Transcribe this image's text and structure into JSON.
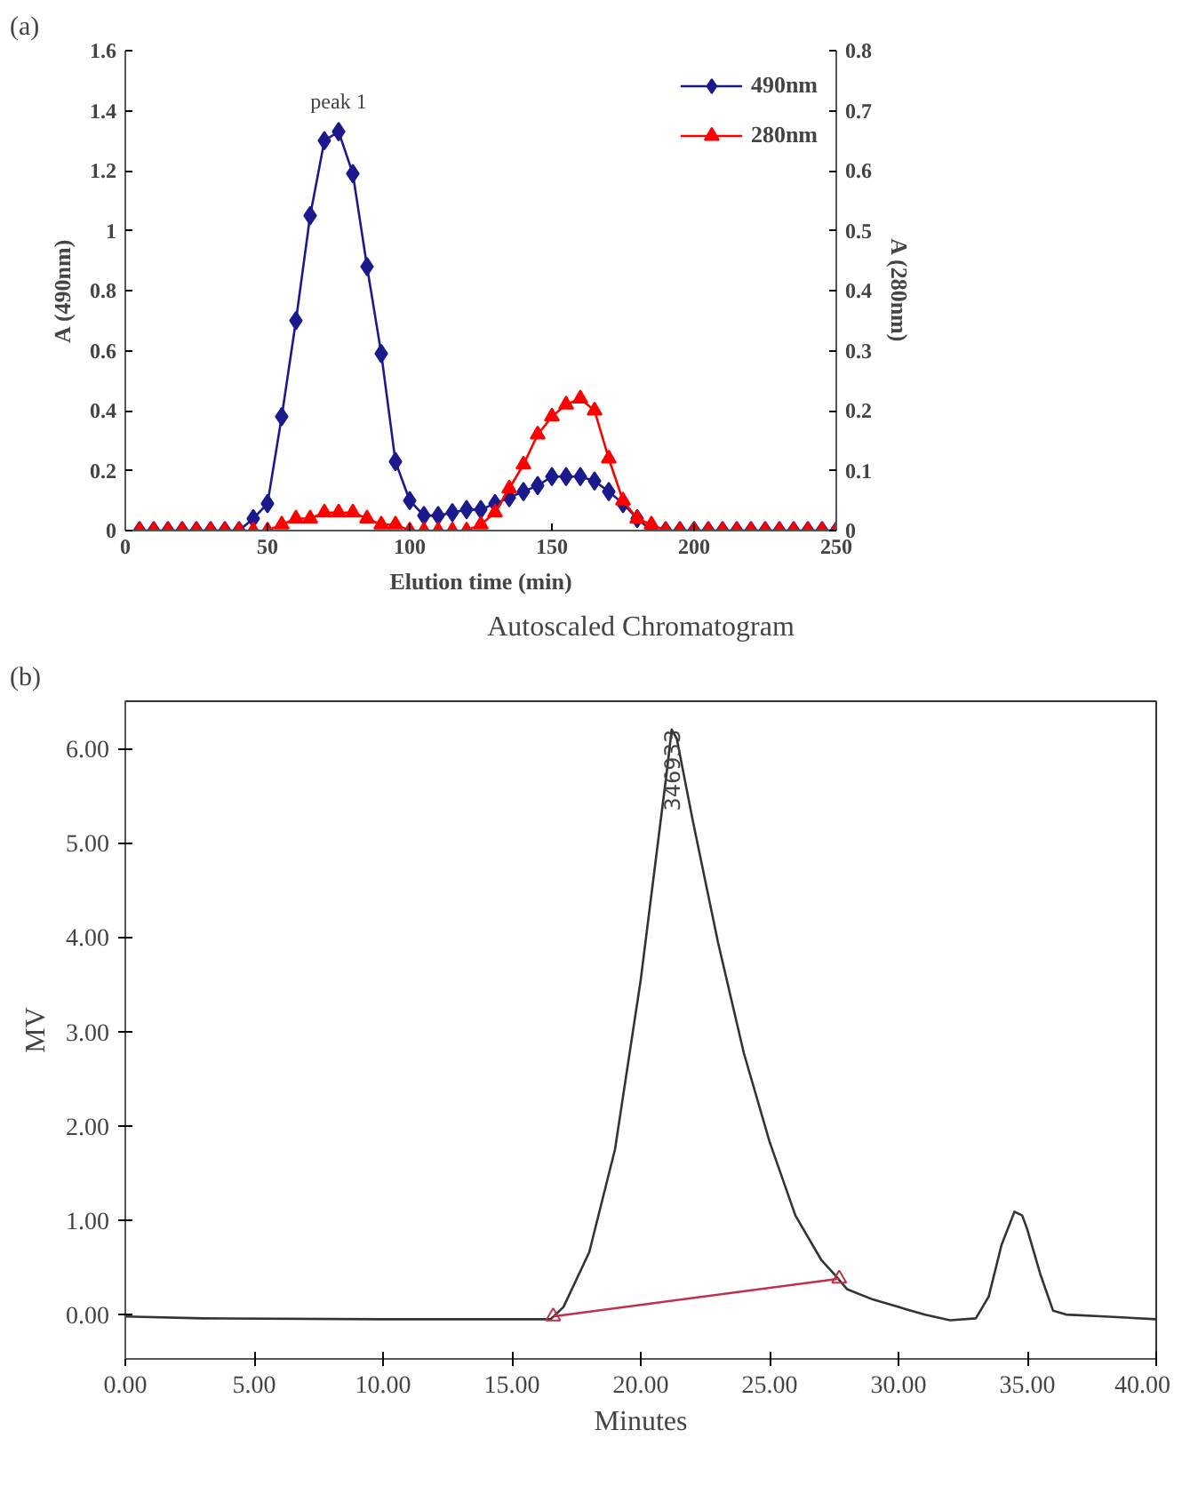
{
  "chart_data": [
    {
      "type": "line",
      "xlabel": "Elution time (min)",
      "ylabel": "A (490nm)",
      "y2label": "A (280nm)",
      "annotations": [
        "(a)",
        {
          "text": "peak 1",
          "x": 75,
          "y": 1.33
        }
      ],
      "x": [
        5,
        10,
        15,
        20,
        25,
        30,
        35,
        40,
        45,
        50,
        55,
        60,
        65,
        70,
        75,
        80,
        85,
        90,
        95,
        100,
        105,
        110,
        115,
        120,
        125,
        130,
        135,
        140,
        145,
        150,
        155,
        160,
        165,
        170,
        175,
        180,
        185,
        190,
        195,
        200,
        205,
        210,
        215,
        220,
        225,
        230,
        235,
        240,
        245,
        250
      ],
      "series": [
        {
          "name": "490nm",
          "color": "#1a1a8c",
          "marker": "diamond",
          "values": [
            0,
            0,
            0,
            0,
            0,
            0,
            0,
            0,
            0.04,
            0.09,
            0.38,
            0.7,
            1.05,
            1.3,
            1.33,
            1.19,
            0.88,
            0.59,
            0.23,
            0.1,
            0.05,
            0.05,
            0.06,
            0.07,
            0.07,
            0.09,
            0.11,
            0.13,
            0.15,
            0.18,
            0.18,
            0.18,
            0.165,
            0.13,
            0.09,
            0.04,
            0,
            0,
            0,
            0,
            0,
            0,
            0,
            0,
            0,
            0,
            0,
            0,
            0,
            0
          ]
        },
        {
          "name": "280nm",
          "color": "#ff0000",
          "marker": "triangle",
          "axis": "y2",
          "values": [
            0,
            0,
            0,
            0,
            0,
            0,
            0,
            0,
            0,
            0,
            0.01,
            0.02,
            0.02,
            0.03,
            0.03,
            0.03,
            0.02,
            0.01,
            0.01,
            0,
            0,
            0,
            0,
            0,
            0.01,
            0.03,
            0.07,
            0.11,
            0.16,
            0.19,
            0.21,
            0.22,
            0.2,
            0.12,
            0.05,
            0.02,
            0.01,
            0,
            0,
            0,
            0,
            0,
            0,
            0,
            0,
            0,
            0,
            0,
            0,
            0
          ]
        }
      ],
      "xlim": [
        0,
        250
      ],
      "xticks": [
        0,
        50,
        100,
        150,
        200,
        250
      ],
      "ylim": [
        0,
        1.6
      ],
      "yticks": [
        0,
        0.2,
        0.4,
        0.6,
        0.8,
        1,
        1.2,
        1.4,
        1.6
      ],
      "y2lim": [
        0,
        0.8
      ],
      "y2ticks": [
        0,
        0.1,
        0.2,
        0.3,
        0.4,
        0.5,
        0.6,
        0.7,
        0.8
      ],
      "grid": false,
      "legend": "top right"
    },
    {
      "type": "line",
      "title": "Autoscaled Chromatogram",
      "xlabel": "Minutes",
      "ylabel": "MV",
      "annotations": [
        "(b)",
        {
          "text": "346933",
          "x": 21.2,
          "y": 6.2
        }
      ],
      "series": [
        {
          "color": "#333333",
          "marker": "none",
          "x": [
            0,
            3,
            10,
            16.5,
            17,
            18,
            19,
            20,
            20.5,
            21,
            21.2,
            21.4,
            22,
            23,
            24,
            25,
            26,
            27,
            27.5,
            28,
            29,
            30,
            31,
            32,
            33,
            33.5,
            34,
            34.5,
            34.8,
            35,
            35.5,
            36,
            36.5,
            38,
            40
          ],
          "values": [
            -0.02,
            -0.04,
            -0.05,
            -0.05,
            0.08,
            0.66,
            1.75,
            3.55,
            4.64,
            5.73,
            6.2,
            6.1,
            5.26,
            3.94,
            2.77,
            1.83,
            1.05,
            0.58,
            0.43,
            0.27,
            0.16,
            0.08,
            0,
            -0.06,
            -0.04,
            0.19,
            0.74,
            1.09,
            1.05,
            0.9,
            0.43,
            0.04,
            0,
            -0.02,
            -0.05
          ]
        },
        {
          "color": "#c0304a",
          "marker": "triangle",
          "x": [
            16.6,
            27.7
          ],
          "values": [
            -0.02,
            0.38
          ]
        }
      ],
      "xlim": [
        0,
        40
      ],
      "xticks": [
        {
          "value": 0,
          "label": "0.00"
        },
        {
          "value": 5,
          "label": "5.00"
        },
        {
          "value": 10,
          "label": "10.00"
        },
        {
          "value": 15,
          "label": "15.00"
        },
        {
          "value": 20,
          "label": "20.00"
        },
        {
          "value": 25,
          "label": "25.00"
        },
        {
          "value": 30,
          "label": "30.00"
        },
        {
          "value": 35,
          "label": "35.00"
        },
        {
          "value": 40,
          "label": "40.00"
        }
      ],
      "ylim": [
        -0.47,
        6.5
      ],
      "yticks": [
        {
          "value": 0,
          "label": "0.00"
        },
        {
          "value": 1,
          "label": "1.00"
        },
        {
          "value": 2,
          "label": "2.00"
        },
        {
          "value": 3,
          "label": "3.00"
        },
        {
          "value": 4,
          "label": "4.00"
        },
        {
          "value": 5,
          "label": "5.00"
        },
        {
          "value": 6,
          "label": "6.00"
        }
      ],
      "grid": false,
      "legend": false
    }
  ]
}
